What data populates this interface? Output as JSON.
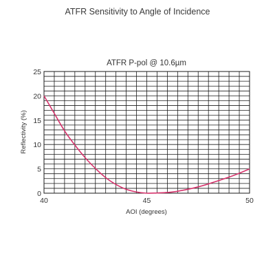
{
  "page": {
    "title": "ATFR Sensitivity to Angle of Incidence"
  },
  "chart_data": {
    "type": "line",
    "title": "ATFR P-pol @ 10.6µm",
    "xlabel": "AOI (degrees)",
    "ylabel": "Reflectivity (%)",
    "xlim": [
      40,
      50
    ],
    "ylim": [
      0,
      25
    ],
    "x_ticks": [
      40,
      45,
      50
    ],
    "y_ticks": [
      0,
      5,
      10,
      15,
      20,
      25
    ],
    "grid": true,
    "legend": "none",
    "colors": {
      "series": "#d6336c",
      "grid": "#1a1a1a"
    },
    "series": [
      {
        "x": [
          40,
          40.5,
          41,
          41.5,
          42,
          42.5,
          43,
          43.5,
          44,
          44.5,
          45,
          45.5,
          46,
          46.5,
          47,
          47.5,
          48,
          48.5,
          49,
          49.5,
          50
        ],
        "y": [
          20,
          16.4,
          12.8,
          9.9,
          7.3,
          5.1,
          3.2,
          1.8,
          0.8,
          0.25,
          0,
          0.05,
          0.15,
          0.4,
          0.8,
          1.3,
          1.9,
          2.6,
          3.3,
          4.1,
          5.0
        ]
      }
    ]
  }
}
